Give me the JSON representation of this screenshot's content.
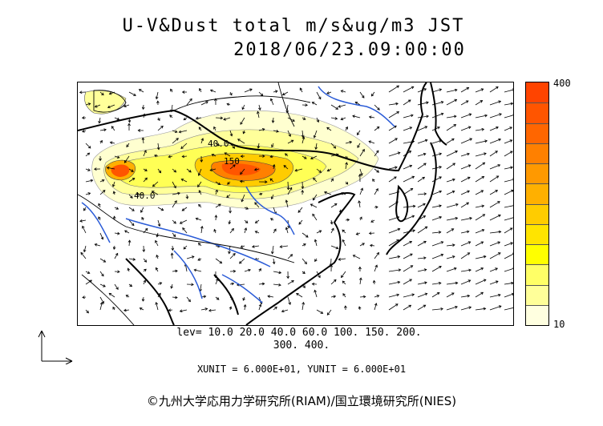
{
  "title": {
    "line1": "U-V&Dust total m/s&ug/m3 JST",
    "line2": "2018/06/23.09:00:00"
  },
  "colorbar": {
    "max_label": "400",
    "min_label": "10",
    "colors": [
      "#ffffe0",
      "#ffff99",
      "#ffff66",
      "#ffff00",
      "#ffe400",
      "#ffcc00",
      "#ffb000",
      "#ff9900",
      "#ff8000",
      "#ff6600",
      "#ff5500",
      "#ff4400"
    ]
  },
  "levels": {
    "line1": "lev= 10.0 20.0 40.0 60.0 100. 150. 200.",
    "line2": "300. 400."
  },
  "units_text": "XUNIT = 6.000E+01, YUNIT = 6.000E+01",
  "contour_labels": [
    "40.0",
    "150",
    "40.0"
  ],
  "credit": "©九州大学応用力学研究所(RIAM)/国立環境研究所(NIES)"
}
